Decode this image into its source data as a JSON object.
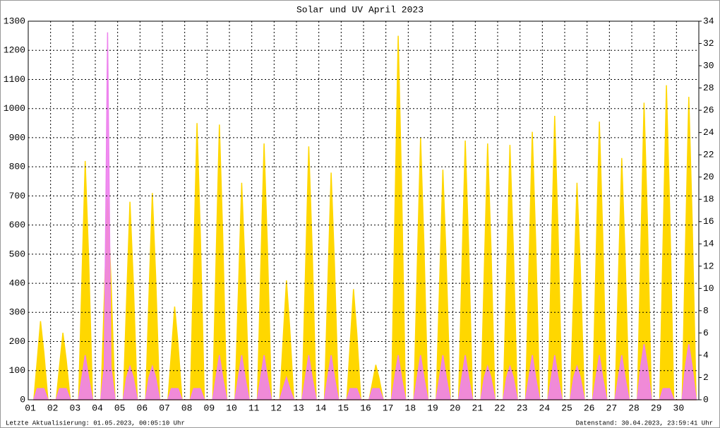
{
  "chart_data": {
    "type": "area",
    "title_join": "und",
    "title": "April 2023",
    "footer_left": "Letzte Aktualisierung: 01.05.2023, 00:05:10 Uhr",
    "footer_right": "Datenstand: 30.04.2023, 23:59:41 Uhr",
    "x": [
      1.25,
      1.4,
      1.55,
      1.7,
      1.88,
      2.25,
      2.4,
      2.55,
      2.7,
      2.88,
      3.25,
      3.4,
      3.55,
      3.7,
      3.88,
      4.25,
      4.4,
      4.55,
      4.7,
      4.88,
      5.25,
      5.4,
      5.55,
      5.7,
      5.88,
      6.25,
      6.4,
      6.55,
      6.7,
      6.88,
      7.25,
      7.4,
      7.55,
      7.7,
      7.88,
      8.25,
      8.4,
      8.55,
      8.7,
      8.88,
      9.25,
      9.4,
      9.55,
      9.7,
      9.88,
      10.25,
      10.4,
      10.55,
      10.7,
      10.88,
      11.25,
      11.4,
      11.55,
      11.7,
      11.88,
      12.25,
      12.4,
      12.55,
      12.7,
      12.88,
      13.25,
      13.4,
      13.55,
      13.7,
      13.88,
      14.25,
      14.4,
      14.55,
      14.7,
      14.88,
      15.25,
      15.4,
      15.55,
      15.7,
      15.88,
      16.25,
      16.4,
      16.55,
      16.7,
      16.88,
      17.25,
      17.4,
      17.55,
      17.7,
      17.88,
      18.25,
      18.4,
      18.55,
      18.7,
      18.88,
      19.25,
      19.4,
      19.55,
      19.7,
      19.88,
      20.25,
      20.4,
      20.55,
      20.7,
      20.88,
      21.25,
      21.4,
      21.55,
      21.7,
      21.88,
      22.25,
      22.4,
      22.55,
      22.7,
      22.88,
      23.25,
      23.4,
      23.55,
      23.7,
      23.88,
      24.25,
      24.4,
      24.55,
      24.7,
      24.88,
      25.25,
      25.4,
      25.55,
      25.7,
      25.88,
      26.25,
      26.4,
      26.55,
      26.7,
      26.88,
      27.25,
      27.4,
      27.55,
      27.7,
      27.88,
      28.25,
      28.4,
      28.55,
      28.7,
      28.88,
      29.25,
      29.4,
      29.55,
      29.7,
      29.88,
      30.25,
      30.4,
      30.55,
      30.7,
      30.88
    ],
    "series": [
      {
        "name": "Solar",
        "color": "#ffd700",
        "values": [
          0,
          135,
          270,
          162,
          0,
          0,
          115,
          230,
          138,
          0,
          0,
          410,
          820,
          492,
          0,
          0,
          345,
          690,
          414,
          0,
          0,
          340,
          680,
          408,
          0,
          0,
          355,
          710,
          426,
          0,
          0,
          160,
          320,
          192,
          0,
          0,
          475,
          950,
          570,
          0,
          0,
          472,
          945,
          567,
          0,
          0,
          372,
          745,
          447,
          0,
          0,
          440,
          880,
          528,
          0,
          0,
          205,
          410,
          246,
          0,
          0,
          435,
          870,
          522,
          0,
          0,
          390,
          780,
          468,
          0,
          0,
          190,
          380,
          228,
          0,
          0,
          60,
          120,
          72,
          0,
          0,
          625,
          1250,
          750,
          0,
          0,
          450,
          900,
          540,
          0,
          0,
          395,
          790,
          474,
          0,
          0,
          445,
          890,
          534,
          0,
          0,
          440,
          880,
          528,
          0,
          0,
          437,
          875,
          525,
          0,
          0,
          460,
          920,
          552,
          0,
          0,
          487,
          975,
          585,
          0,
          0,
          372,
          745,
          447,
          0,
          0,
          477,
          955,
          573,
          0,
          0,
          415,
          830,
          498,
          0,
          0,
          510,
          1020,
          612,
          0,
          0,
          540,
          1080,
          648,
          0,
          0,
          520,
          1040,
          624,
          0
        ]
      },
      {
        "name": "UV",
        "color": "#ee82ee",
        "axis": "y2",
        "values": [
          0,
          1,
          1,
          1,
          0,
          0,
          1,
          1,
          1,
          0,
          0,
          2,
          4,
          2,
          0,
          0,
          3,
          33,
          3,
          0,
          0,
          2,
          3,
          2,
          0,
          0,
          2,
          3,
          2,
          0,
          0,
          1,
          1,
          1,
          0,
          0,
          1,
          1,
          1,
          0,
          0,
          2,
          4,
          2,
          0,
          0,
          2,
          4,
          2,
          0,
          0,
          2,
          4,
          2,
          0,
          0,
          1,
          2,
          1,
          0,
          0,
          2,
          4,
          2,
          0,
          0,
          2,
          4,
          2,
          0,
          0,
          1,
          1,
          1,
          0,
          0,
          1,
          1,
          1,
          0,
          0,
          2,
          4,
          2,
          0,
          0,
          2,
          4,
          2,
          0,
          0,
          2,
          4,
          2,
          0,
          0,
          2,
          4,
          2,
          0,
          0,
          2,
          3,
          2,
          0,
          0,
          2,
          3,
          2,
          0,
          0,
          2,
          4,
          2,
          0,
          0,
          2,
          4,
          2,
          0,
          0,
          2,
          3,
          2,
          0,
          0,
          2,
          4,
          2,
          0,
          0,
          2,
          4,
          2,
          0,
          0,
          3,
          5,
          3,
          0,
          0,
          1,
          1,
          1,
          0,
          0,
          3,
          5,
          3,
          0
        ]
      }
    ],
    "xlim": [
      1,
      31
    ],
    "xticks": [
      {
        "value": 1,
        "label": "01"
      },
      {
        "value": 2,
        "label": "02"
      },
      {
        "value": 3,
        "label": "03"
      },
      {
        "value": 4,
        "label": "04"
      },
      {
        "value": 5,
        "label": "05"
      },
      {
        "value": 6,
        "label": "06"
      },
      {
        "value": 7,
        "label": "07"
      },
      {
        "value": 8,
        "label": "08"
      },
      {
        "value": 9,
        "label": "09"
      },
      10,
      11,
      12,
      13,
      14,
      15,
      16,
      17,
      18,
      19,
      20,
      21,
      22,
      23,
      24,
      25,
      26,
      27,
      28,
      29,
      30
    ],
    "ylim": [
      0,
      1300
    ],
    "yticks": [
      0,
      100,
      200,
      300,
      400,
      500,
      600,
      700,
      800,
      900,
      1000,
      1100,
      1200,
      1300
    ],
    "y2lim": [
      0,
      34
    ],
    "y2ticks": [
      0,
      2,
      4,
      6,
      8,
      10,
      12,
      14,
      16,
      18,
      20,
      22,
      24,
      26,
      28,
      30,
      32,
      34
    ],
    "grid": true
  }
}
